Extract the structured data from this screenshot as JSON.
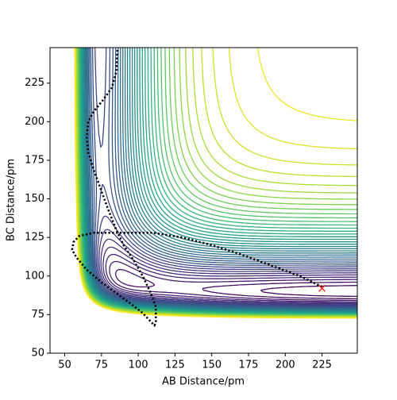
{
  "chart_data": {
    "type": "contour",
    "xlabel": "AB Distance/pm",
    "ylabel": "BC Distance/pm",
    "xlim": [
      40,
      249
    ],
    "ylim": [
      50,
      248
    ],
    "xticks": [
      50,
      75,
      100,
      125,
      150,
      175,
      200,
      225
    ],
    "yticks": [
      50,
      75,
      100,
      125,
      150,
      175,
      200,
      225
    ],
    "colormap": "viridis",
    "surface": {
      "D1": 400,
      "D2": 500,
      "a": 0.04,
      "re1": 74,
      "re2": 90,
      "R": 600,
      "c": 0.03,
      "r0": 164
    },
    "levels": [
      0,
      12.5,
      25,
      37.5,
      50,
      62.5,
      75,
      87.5,
      100,
      112.5,
      125,
      137.5,
      150,
      162.5,
      175,
      187.5,
      200,
      212.5,
      225,
      237.5,
      250,
      262.5,
      275,
      287.5,
      300,
      312.5,
      325,
      337.5,
      350,
      362.5,
      375,
      387.5,
      400,
      412.5,
      425,
      437.5,
      450,
      462.5,
      475,
      487.5,
      500
    ],
    "trajectory": {
      "color": "#000000",
      "x": [
        225,
        210,
        190,
        170,
        150,
        130,
        110,
        90,
        70,
        60,
        56,
        55,
        58,
        65,
        75,
        85,
        95,
        103,
        108,
        111,
        112,
        112,
        108,
        103,
        97,
        90,
        85,
        80,
        75,
        70,
        66,
        65,
        66,
        70,
        76,
        82,
        85,
        86
      ],
      "y": [
        93,
        100,
        107,
        114,
        120,
        125,
        128,
        128,
        128,
        126,
        122,
        117,
        112,
        104,
        96,
        89,
        82,
        76,
        71,
        68,
        70,
        80,
        90,
        100,
        110,
        120,
        130,
        142,
        155,
        168,
        180,
        190,
        200,
        207,
        214,
        222,
        232,
        248
      ]
    },
    "marker": {
      "x": 225,
      "y": 92,
      "color": "#ff0000"
    }
  }
}
